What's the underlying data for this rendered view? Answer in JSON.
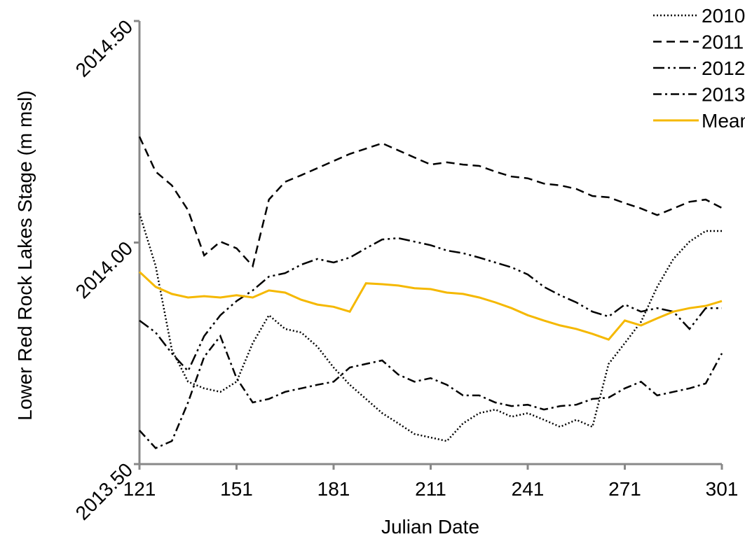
{
  "chart_data": {
    "type": "line",
    "x_label": "Julian Date",
    "y_label": "Lower Red Rock Lakes Stage (m msl)",
    "x": [
      121,
      126,
      131,
      136,
      141,
      146,
      151,
      156,
      161,
      166,
      171,
      176,
      181,
      186,
      191,
      196,
      201,
      206,
      211,
      216,
      221,
      226,
      231,
      236,
      241,
      246,
      251,
      256,
      261,
      266,
      271,
      276,
      281,
      286,
      291,
      296,
      301
    ],
    "xlim": [
      121,
      301
    ],
    "xticks": [
      121,
      151,
      181,
      211,
      241,
      271,
      301
    ],
    "ylim": [
      2013.5,
      2014.5
    ],
    "yticks": [
      {
        "value": 2013.5,
        "label": "2013.50"
      },
      {
        "value": 2014.0,
        "label": "2014.00"
      },
      {
        "value": 2014.5,
        "label": "2014.50"
      }
    ],
    "legend": "top-right",
    "series": [
      {
        "name": "2010",
        "color": "#000000",
        "dash": "2,3",
        "values": [
          2014.066,
          2013.947,
          2013.758,
          2013.686,
          2013.671,
          2013.663,
          2013.686,
          2013.773,
          2013.836,
          2013.805,
          2013.797,
          2013.765,
          2013.718,
          2013.679,
          2013.647,
          2013.615,
          2013.592,
          2013.568,
          2013.56,
          2013.552,
          2013.592,
          2013.615,
          2013.623,
          2013.607,
          2013.615,
          2013.6,
          2013.584,
          2013.6,
          2013.584,
          2013.726,
          2013.773,
          2013.821,
          2013.9,
          2013.963,
          2014.002,
          2014.026,
          2014.026
        ]
      },
      {
        "name": "2011",
        "color": "#000000",
        "dash": "12,7",
        "values": [
          2014.239,
          2014.16,
          2014.129,
          2014.073,
          2013.971,
          2014.002,
          2013.987,
          2013.947,
          2014.097,
          2014.137,
          2014.152,
          2014.168,
          2014.184,
          2014.2,
          2014.212,
          2014.224,
          2014.208,
          2014.192,
          2014.176,
          2014.181,
          2014.176,
          2014.173,
          2014.16,
          2014.149,
          2014.145,
          2014.133,
          2014.129,
          2014.121,
          2014.105,
          2014.102,
          2014.089,
          2014.077,
          2014.062,
          2014.077,
          2014.092,
          2014.097,
          2014.078
        ]
      },
      {
        "name": "2012",
        "color": "#000000",
        "dash": "16,5,3,5,3,5",
        "values": [
          2013.824,
          2013.797,
          2013.75,
          2013.71,
          2013.789,
          2013.836,
          2013.868,
          2013.892,
          2013.923,
          2013.931,
          2013.95,
          2013.963,
          2013.955,
          2013.966,
          2013.987,
          2014.007,
          2014.01,
          2014.002,
          2013.994,
          2013.982,
          2013.976,
          2013.966,
          2013.955,
          2013.944,
          2013.928,
          2013.9,
          2013.881,
          2013.865,
          2013.844,
          2013.833,
          2013.86,
          2013.844,
          2013.852,
          2013.844,
          2013.805,
          2013.852,
          2013.852
        ]
      },
      {
        "name": "2013",
        "color": "#000000",
        "dash": "12,5,3,5",
        "values": [
          2013.576,
          2013.536,
          2013.552,
          2013.639,
          2013.742,
          2013.789,
          2013.694,
          2013.639,
          2013.647,
          2013.663,
          2013.671,
          2013.679,
          2013.686,
          2013.718,
          2013.726,
          2013.734,
          2013.702,
          2013.686,
          2013.694,
          2013.679,
          2013.655,
          2013.655,
          2013.639,
          2013.631,
          2013.634,
          2013.623,
          2013.631,
          2013.634,
          2013.647,
          2013.65,
          2013.671,
          2013.686,
          2013.655,
          2013.663,
          2013.671,
          2013.682,
          2013.75
        ]
      },
      {
        "name": "Mean",
        "color": "#f5b800",
        "dash": "none",
        "values": [
          2013.934,
          2013.9,
          2013.884,
          2013.876,
          2013.879,
          2013.876,
          2013.881,
          2013.876,
          2013.892,
          2013.887,
          2013.871,
          2013.86,
          2013.855,
          2013.844,
          2013.908,
          2013.906,
          2013.903,
          2013.897,
          2013.895,
          2013.887,
          2013.884,
          2013.876,
          2013.865,
          2013.852,
          2013.836,
          2013.824,
          2013.813,
          2013.805,
          2013.794,
          2013.781,
          2013.824,
          2013.813,
          2013.829,
          2013.844,
          2013.852,
          2013.857,
          2013.868
        ]
      }
    ]
  }
}
